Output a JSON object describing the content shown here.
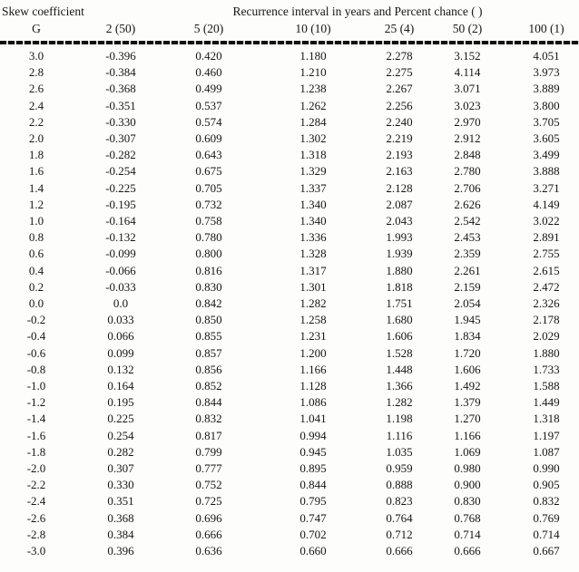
{
  "table": {
    "header_group": {
      "left_title": "Skew coefficient",
      "right_title": "Recurrence interval in years and Percent chance ( )"
    },
    "columns": [
      "G",
      "2 (50)",
      "5 (20)",
      "10 (10)",
      "25 (4)",
      "50 (2)",
      "100 (1)"
    ],
    "rows": [
      [
        "3.0",
        "-0.396",
        "0.420",
        "1.180",
        "2.278",
        "3.152",
        "4.051"
      ],
      [
        "2.8",
        "-0.384",
        "0.460",
        "1.210",
        "2.275",
        "4.114",
        "3.973"
      ],
      [
        "2.6",
        "-0.368",
        "0.499",
        "1.238",
        "2.267",
        "3.071",
        "3.889"
      ],
      [
        "2.4",
        "-0.351",
        "0.537",
        "1.262",
        "2.256",
        "3.023",
        "3.800"
      ],
      [
        "2.2",
        "-0.330",
        "0.574",
        "1.284",
        "2.240",
        "2.970",
        "3.705"
      ],
      [
        "2.0",
        "-0.307",
        "0.609",
        "1.302",
        "2.219",
        "2.912",
        "3.605"
      ],
      [
        "1.8",
        "-0.282",
        "0.643",
        "1.318",
        "2.193",
        "2.848",
        "3.499"
      ],
      [
        "1.6",
        "-0.254",
        "0.675",
        "1.329",
        "2.163",
        "2.780",
        "3.888"
      ],
      [
        "1.4",
        "-0.225",
        "0.705",
        "1.337",
        "2.128",
        "2.706",
        "3.271"
      ],
      [
        "1.2",
        "-0.195",
        "0.732",
        "1.340",
        "2.087",
        "2.626",
        "4.149"
      ],
      [
        "1.0",
        "-0.164",
        "0.758",
        "1.340",
        "2.043",
        "2.542",
        "3.022"
      ],
      [
        "0.8",
        "-0.132",
        "0.780",
        "1.336",
        "1.993",
        "2.453",
        "2.891"
      ],
      [
        "0.6",
        "-0.099",
        "0.800",
        "1.328",
        "1.939",
        "2.359",
        "2.755"
      ],
      [
        "0.4",
        "-0.066",
        "0.816",
        "1.317",
        "1.880",
        "2.261",
        "2.615"
      ],
      [
        "0.2",
        "-0.033",
        "0.830",
        "1.301",
        "1.818",
        "2.159",
        "2.472"
      ],
      [
        "0.0",
        "0.0",
        "0.842",
        "1.282",
        "1.751",
        "2.054",
        "2.326"
      ],
      [
        "-0.2",
        "0.033",
        "0.850",
        "1.258",
        "1.680",
        "1.945",
        "2.178"
      ],
      [
        "-0.4",
        "0.066",
        "0.855",
        "1.231",
        "1.606",
        "1.834",
        "2.029"
      ],
      [
        "-0.6",
        "0.099",
        "0.857",
        "1.200",
        "1.528",
        "1.720",
        "1.880"
      ],
      [
        "-0.8",
        "0.132",
        "0.856",
        "1.166",
        "1.448",
        "1.606",
        "1.733"
      ],
      [
        "-1.0",
        "0.164",
        "0.852",
        "1.128",
        "1.366",
        "1.492",
        "1.588"
      ],
      [
        "-1.2",
        "0.195",
        "0.844",
        "1.086",
        "1.282",
        "1.379",
        "1.449"
      ],
      [
        "-1.4",
        "0.225",
        "0.832",
        "1.041",
        "1.198",
        "1.270",
        "1.318"
      ],
      [
        "-1.6",
        "0.254",
        "0.817",
        "0.994",
        "1.116",
        "1.166",
        "1.197"
      ],
      [
        "-1.8",
        "0.282",
        "0.799",
        "0.945",
        "1.035",
        "1.069",
        "1.087"
      ],
      [
        "-2.0",
        "0.307",
        "0.777",
        "0.895",
        "0.959",
        "0.980",
        "0.990"
      ],
      [
        "-2.2",
        "0.330",
        "0.752",
        "0.844",
        "0.888",
        "0.900",
        "0.905"
      ],
      [
        "-2.4",
        "0.351",
        "0.725",
        "0.795",
        "0.823",
        "0.830",
        "0.832"
      ],
      [
        "-2.6",
        "0.368",
        "0.696",
        "0.747",
        "0.764",
        "0.768",
        "0.769"
      ],
      [
        "-2.8",
        "0.384",
        "0.666",
        "0.702",
        "0.712",
        "0.714",
        "0.714"
      ],
      [
        "-3.0",
        "0.396",
        "0.636",
        "0.660",
        "0.666",
        "0.666",
        "0.667"
      ]
    ]
  }
}
